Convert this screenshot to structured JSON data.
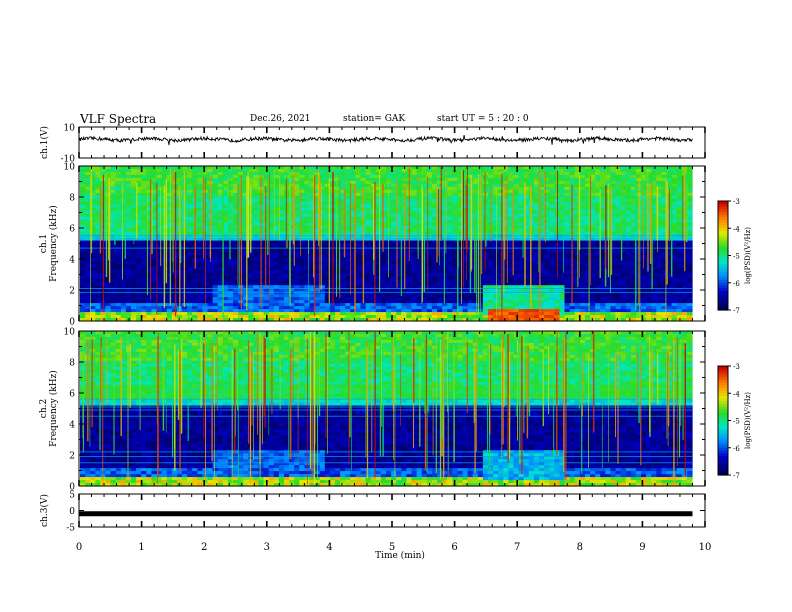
{
  "header": {
    "title": "VLF Spectra",
    "date": "Dec.26, 2021",
    "station": "station= GAK",
    "start": "start  UT =   5 : 20 : 0"
  },
  "chart_data": [
    {
      "type": "line",
      "ylabel": "ch.1(V)",
      "ylim": [
        -10,
        10
      ],
      "yticks": [
        "10",
        "-10"
      ],
      "xlim": [
        0,
        10
      ],
      "grid": false
    },
    {
      "type": "heatmap",
      "ylabel": "ch.1\nFrequency (kHz)",
      "ylim": [
        0,
        10
      ],
      "yticks": [
        "0",
        "2",
        "4",
        "6",
        "8",
        "10"
      ],
      "xlim": [
        0,
        10
      ],
      "colorbar": {
        "label": "log(PSD)(V²/Hz)",
        "range": [
          -7,
          -3
        ],
        "ticks": [
          "-3",
          "-4",
          "-5",
          "-6",
          "-7"
        ]
      }
    },
    {
      "type": "heatmap",
      "ylabel": "ch.2\nFrequency (kHz)",
      "ylim": [
        0,
        10
      ],
      "yticks": [
        "0",
        "2",
        "4",
        "6",
        "8",
        "10"
      ],
      "xlim": [
        0,
        10
      ],
      "colorbar": {
        "label": "log(PSD)(V²/Hz)",
        "range": [
          -7,
          -3
        ],
        "ticks": [
          "-3",
          "-4",
          "-5",
          "-6",
          "-7"
        ]
      }
    },
    {
      "type": "line",
      "ylabel": "ch.3(V)",
      "ylim": [
        -5,
        5
      ],
      "yticks": [
        "5",
        "0",
        "-5"
      ],
      "xlim": [
        0,
        10
      ],
      "x": [
        0,
        9.8
      ],
      "y": [
        -1,
        -1
      ]
    }
  ],
  "xaxis": {
    "label": "Time (min)",
    "ticks": [
      "0",
      "1",
      "2",
      "3",
      "4",
      "5",
      "6",
      "7",
      "8",
      "9",
      "10"
    ]
  }
}
